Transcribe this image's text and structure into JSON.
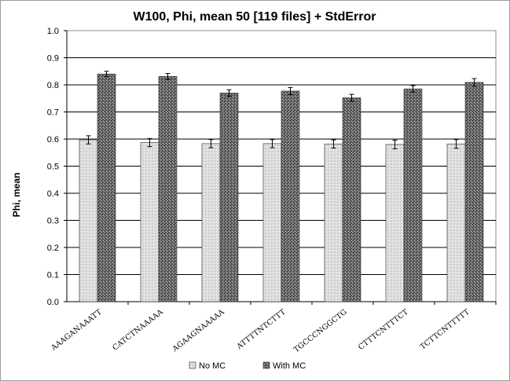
{
  "chart_data": {
    "type": "bar",
    "title": "W100,  Phi, mean 50 [119 files] + StdError",
    "ylabel": "Phi, mean",
    "xlabel": "",
    "ylim": [
      0,
      1.0
    ],
    "ytick_step": 0.1,
    "yticks": [
      "0.0",
      "0.1",
      "0.2",
      "0.3",
      "0.4",
      "0.5",
      "0.6",
      "0.7",
      "0.8",
      "0.9",
      "1.0"
    ],
    "grid": true,
    "legend_position": "bottom",
    "categories": [
      "AAAGANAAATT",
      "CATCTNAAAAA",
      "AGAAGNAAAAA",
      "ATTTTNTCTTT",
      "TGCCCNGGCTG",
      "CTTTCNTTTCT",
      "TCTTCNTTTTT"
    ],
    "series": [
      {
        "name": "No MC",
        "values": [
          0.597,
          0.587,
          0.583,
          0.583,
          0.582,
          0.58,
          0.582
        ],
        "stderr": [
          0.015,
          0.015,
          0.015,
          0.015,
          0.015,
          0.016,
          0.016
        ],
        "color": "#d8d8d8"
      },
      {
        "name": "With MC",
        "values": [
          0.84,
          0.831,
          0.77,
          0.777,
          0.752,
          0.785,
          0.809
        ],
        "stderr": [
          0.01,
          0.011,
          0.012,
          0.013,
          0.013,
          0.012,
          0.014
        ],
        "color": "#5a5a5a"
      }
    ]
  }
}
